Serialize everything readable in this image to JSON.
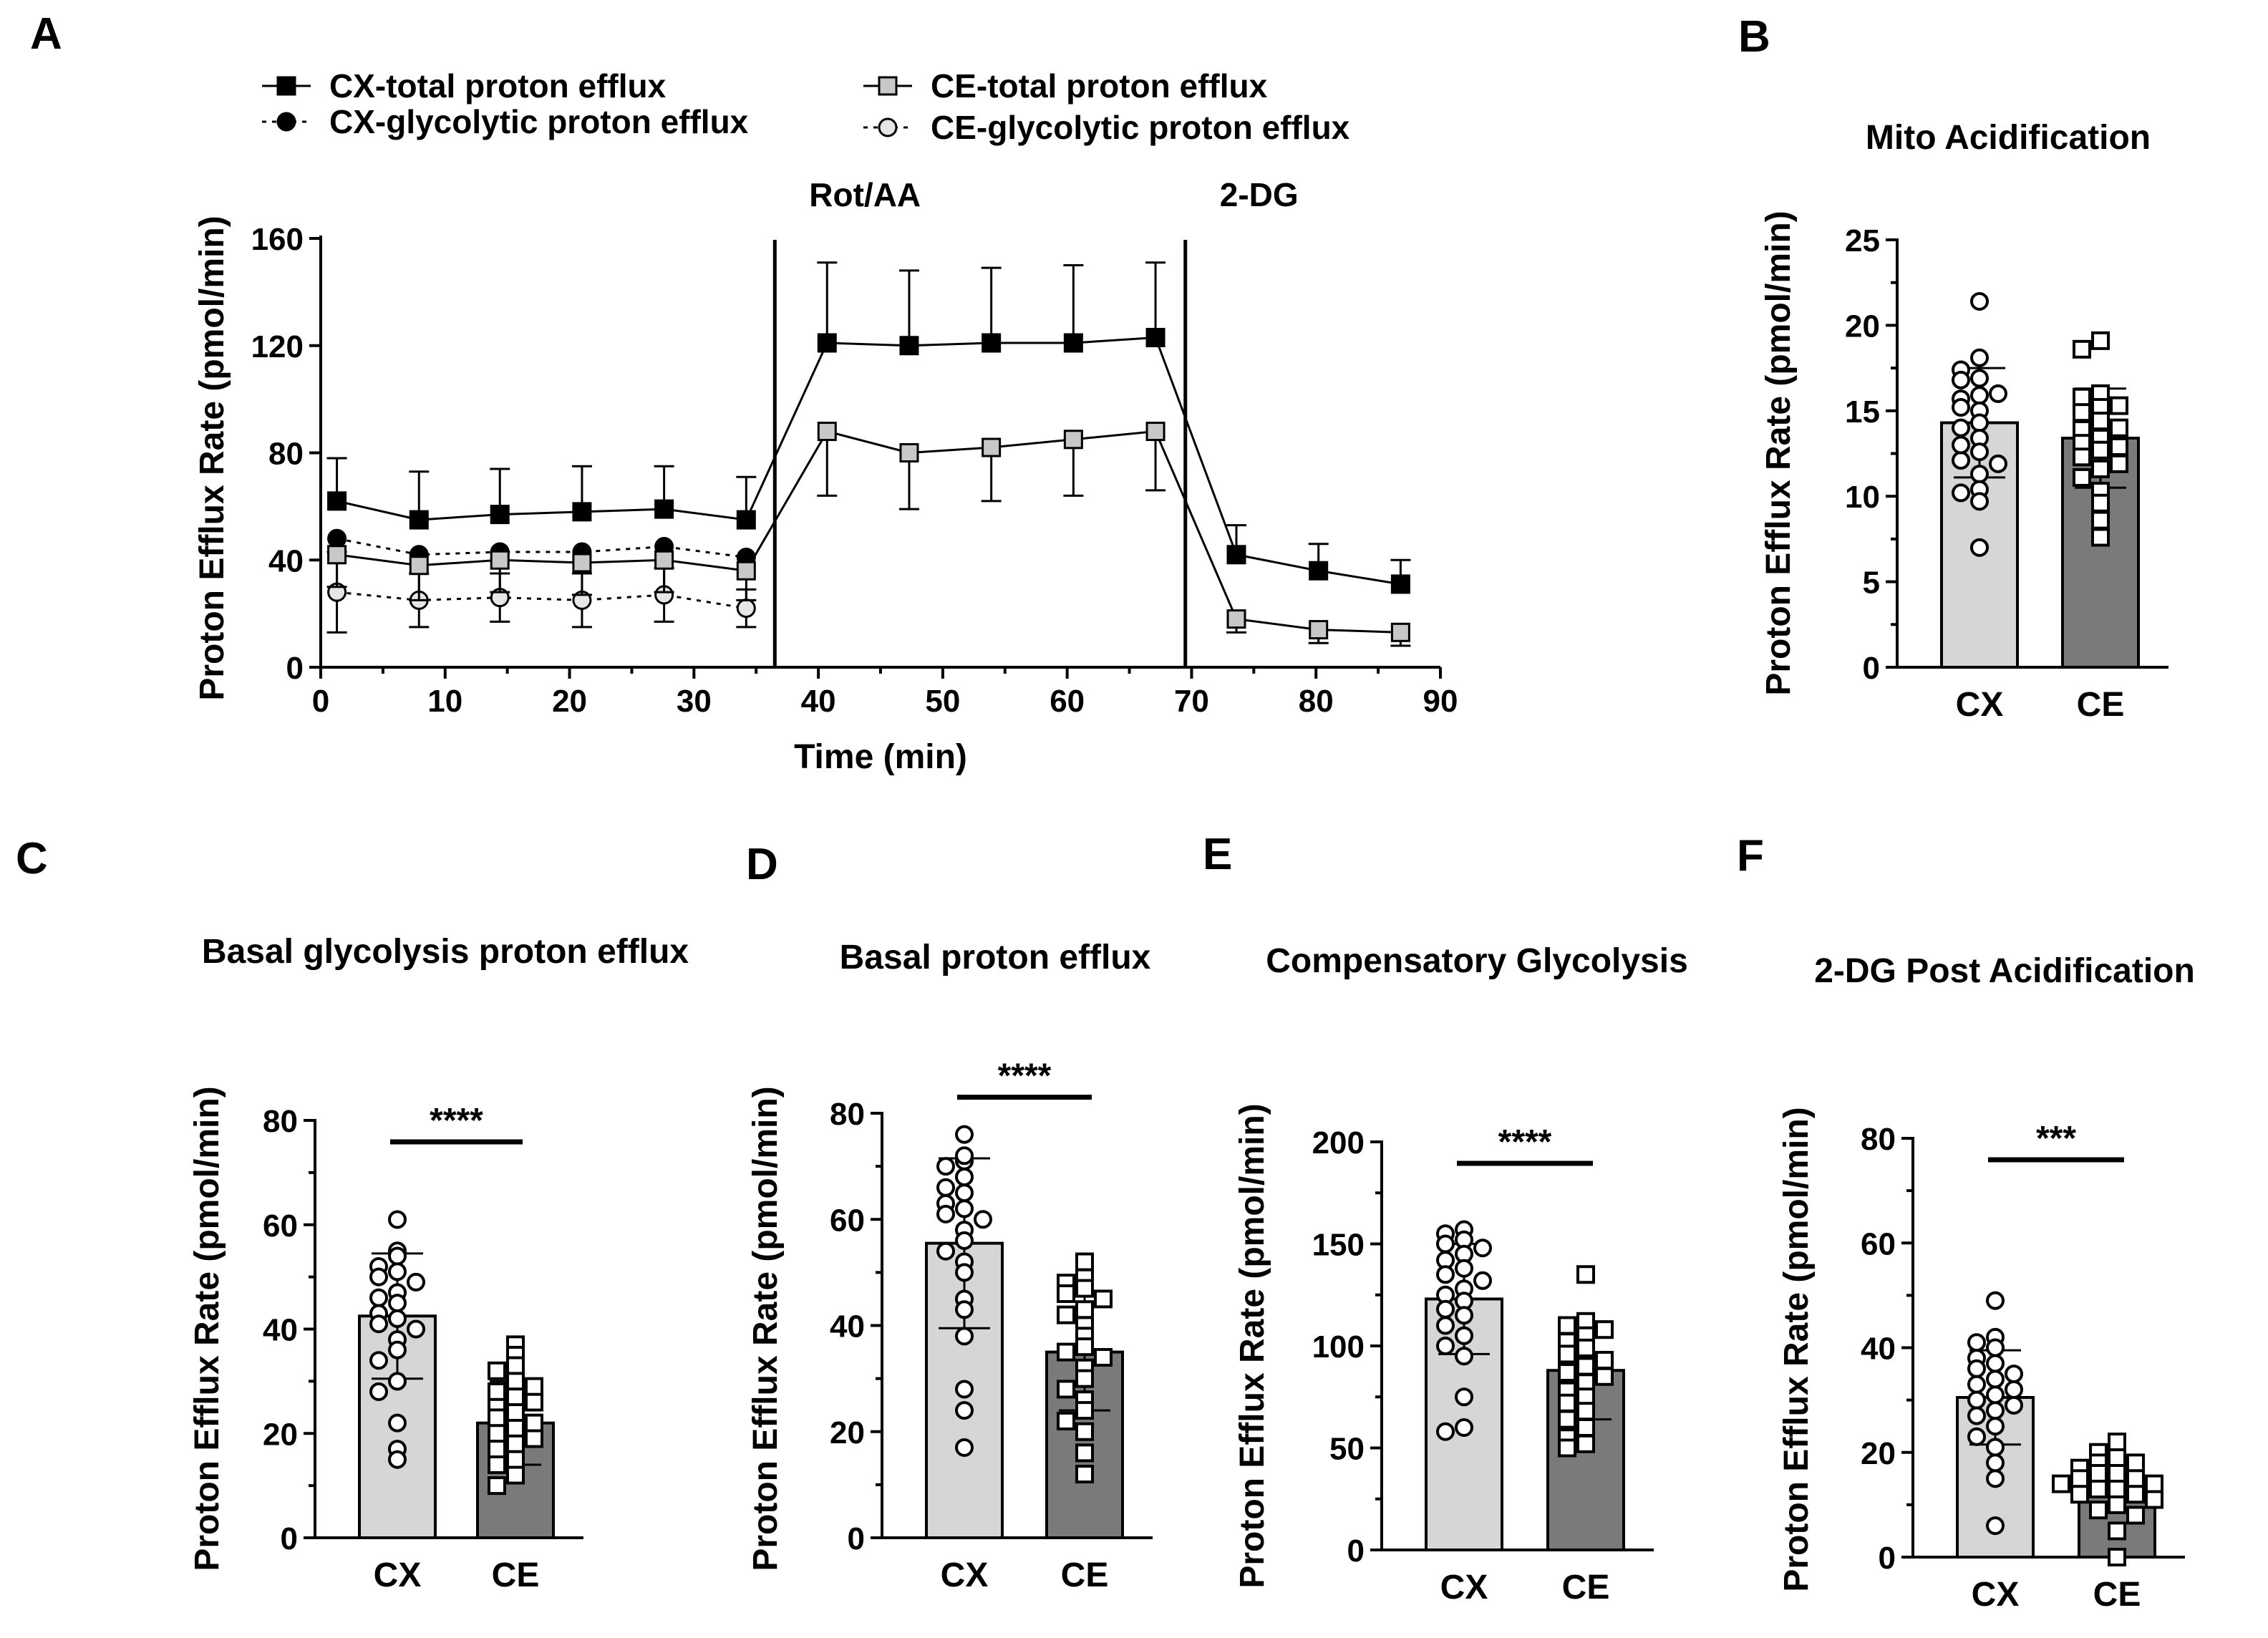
{
  "chart_data": [
    {
      "panel": "A",
      "type": "line",
      "title": "",
      "xlabel": "Time (min)",
      "ylabel": "Proton Efflux Rate (pmol/min)",
      "xlim": [
        0,
        90
      ],
      "ylim": [
        0,
        160
      ],
      "xticks": [
        0,
        10,
        20,
        30,
        40,
        50,
        60,
        70,
        80,
        90
      ],
      "yticks": [
        0,
        40,
        80,
        120,
        160
      ],
      "annotations": [
        {
          "text": "Rot/AA",
          "x": 36.5
        },
        {
          "text": "2-DG",
          "x": 69.5
        }
      ],
      "series": [
        {
          "name": "CX-total proton efflux",
          "marker": "square-filled",
          "line": "solid",
          "color": "#000000",
          "x": [
            1.3,
            7.9,
            14.4,
            21.0,
            27.6,
            34.2,
            40.7,
            47.3,
            53.9,
            60.5,
            67.1,
            73.6,
            80.2,
            86.8
          ],
          "y": [
            62,
            55,
            57,
            58,
            59,
            55,
            121,
            120,
            121,
            121,
            123,
            42,
            36,
            31
          ],
          "error": [
            16,
            18,
            17,
            17,
            16,
            16,
            30,
            28,
            28,
            29,
            28,
            11,
            10,
            9
          ]
        },
        {
          "name": "CX-glycolytic proton efflux",
          "marker": "circle-filled",
          "line": "dotted",
          "color": "#000000",
          "x": [
            1.3,
            7.9,
            14.4,
            21.0,
            27.6,
            34.2
          ],
          "y": [
            48,
            42,
            43,
            43,
            45,
            41
          ],
          "error": [
            0,
            0,
            0,
            0,
            0,
            0
          ]
        },
        {
          "name": "CE-total proton efflux",
          "marker": "square-open",
          "line": "solid",
          "color": "#c8c8c8",
          "x": [
            1.3,
            7.9,
            14.4,
            21.0,
            27.6,
            34.2,
            40.7,
            47.3,
            53.9,
            60.5,
            67.1,
            73.6,
            80.2,
            86.8
          ],
          "y": [
            42,
            38,
            40,
            39,
            40,
            36,
            88,
            80,
            82,
            85,
            88,
            18,
            14,
            13
          ],
          "error": [
            12,
            13,
            12,
            12,
            12,
            11,
            24,
            21,
            20,
            21,
            22,
            5,
            5,
            5
          ]
        },
        {
          "name": "CE-glycolytic proton efflux",
          "marker": "circle-open",
          "line": "dotted",
          "color": "#e6e6e6",
          "x": [
            1.3,
            7.9,
            14.4,
            21.0,
            27.6,
            34.2
          ],
          "y": [
            28,
            25,
            26,
            25,
            27,
            22
          ],
          "error": [
            15,
            10,
            9,
            10,
            10,
            7
          ]
        }
      ]
    },
    {
      "panel": "B",
      "type": "bar",
      "title": "Mito Acidification",
      "ylabel": "Proton Efflux Rate (pmol/min)",
      "ylim": [
        0,
        25
      ],
      "yticks": [
        0,
        5,
        10,
        15,
        20,
        25
      ],
      "categories": [
        "CX",
        "CE"
      ],
      "values": [
        14.3,
        13.4
      ],
      "sd": [
        3.2,
        2.9
      ],
      "significance": "",
      "points": [
        [
          21.4,
          18.1,
          17.4,
          16.9,
          16.8,
          15.9,
          15.7,
          15.0,
          14.3,
          14.0,
          13.4,
          12.6,
          12.1,
          11.9,
          11.3,
          10.4,
          10.2,
          9.7,
          7.0,
          16.0,
          15.2,
          13.0
        ],
        [
          19.1,
          18.6,
          16.0,
          15.8,
          15.2,
          14.9,
          14.4,
          13.9,
          13.4,
          13.1,
          12.7,
          12.3,
          11.9,
          11.6,
          11.1,
          10.3,
          9.6,
          8.6,
          7.6,
          14.0,
          12.9,
          15.3
        ]
      ]
    },
    {
      "panel": "C",
      "type": "bar",
      "title": "Basal glycolysis proton efflux",
      "ylabel": "Proton Efflux Rate (pmol/min)",
      "ylim": [
        0,
        80
      ],
      "yticks": [
        0,
        20,
        40,
        60,
        80
      ],
      "categories": [
        "CX",
        "CE"
      ],
      "values": [
        42.5,
        22.0
      ],
      "sd": [
        12,
        8
      ],
      "significance": "****",
      "points": [
        [
          61,
          55,
          54,
          52,
          51,
          50,
          49,
          47,
          46,
          45,
          43,
          42,
          41,
          40,
          38,
          36,
          34,
          30,
          28,
          22,
          17,
          15
        ],
        [
          37,
          35,
          33,
          32,
          30,
          28,
          27,
          25,
          24,
          23,
          22,
          21,
          20,
          19,
          18,
          17,
          15,
          14,
          12,
          10,
          26,
          29
        ]
      ]
    },
    {
      "panel": "D",
      "type": "bar",
      "title": "Basal proton efflux",
      "ylabel": "Proton Efflux Rate (pmol/min)",
      "ylim": [
        0,
        80
      ],
      "yticks": [
        0,
        20,
        40,
        60,
        80
      ],
      "categories": [
        "CX",
        "CE"
      ],
      "values": [
        55.5,
        35.0
      ],
      "sd": [
        16,
        11
      ],
      "significance": "****",
      "points": [
        [
          76,
          71,
          70,
          68,
          66,
          65,
          63,
          62,
          61,
          60,
          58,
          56,
          54,
          52,
          50,
          45,
          43,
          38,
          28,
          24,
          17,
          72
        ],
        [
          52,
          49,
          48,
          47,
          46,
          45,
          43,
          42,
          40,
          38,
          36,
          35,
          34,
          32,
          30,
          28,
          26,
          24,
          22,
          20,
          16,
          12
        ]
      ]
    },
    {
      "panel": "E",
      "type": "bar",
      "title": "Compensatory Glycolysis",
      "ylabel": "Proton Efflux Rate (pmol/min)",
      "ylim": [
        0,
        200
      ],
      "yticks": [
        0,
        50,
        100,
        150,
        200
      ],
      "categories": [
        "CX",
        "CE"
      ],
      "values": [
        123,
        88
      ],
      "sd": [
        27,
        24
      ],
      "significance": "****",
      "points": [
        [
          157,
          155,
          152,
          150,
          148,
          145,
          142,
          138,
          135,
          132,
          128,
          125,
          122,
          118,
          115,
          110,
          105,
          100,
          95,
          75,
          60,
          58
        ],
        [
          135,
          112,
          110,
          108,
          105,
          102,
          99,
          96,
          93,
          90,
          87,
          85,
          82,
          78,
          75,
          72,
          68,
          64,
          60,
          55,
          52,
          50
        ]
      ]
    },
    {
      "panel": "F",
      "type": "bar",
      "title": "2-DG Post Acidification",
      "ylabel": "Proton Efflux Rate (pmol/min)",
      "ylim": [
        0,
        80
      ],
      "yticks": [
        0,
        20,
        40,
        60,
        80
      ],
      "categories": [
        "CX",
        "CE"
      ],
      "values": [
        30.5,
        14.0
      ],
      "sd": [
        9,
        5
      ],
      "significance": "***",
      "points": [
        [
          49,
          42,
          41,
          40,
          38,
          37,
          36,
          35,
          34,
          33,
          32,
          31,
          30,
          29,
          28,
          27,
          25,
          23,
          21,
          18,
          15,
          6
        ],
        [
          22,
          20,
          19,
          18,
          18,
          17,
          16,
          16,
          15,
          15,
          14,
          14,
          13,
          13,
          12,
          12,
          11,
          10,
          9,
          8,
          5,
          0
        ]
      ]
    }
  ],
  "panel_labels": [
    "A",
    "B",
    "C",
    "D",
    "E",
    "F"
  ],
  "colors": {
    "cx_bar": "#d6d6d6",
    "ce_bar": "#7a7a7a",
    "line_black": "#000000",
    "line_gray": "#c8c8c8"
  }
}
